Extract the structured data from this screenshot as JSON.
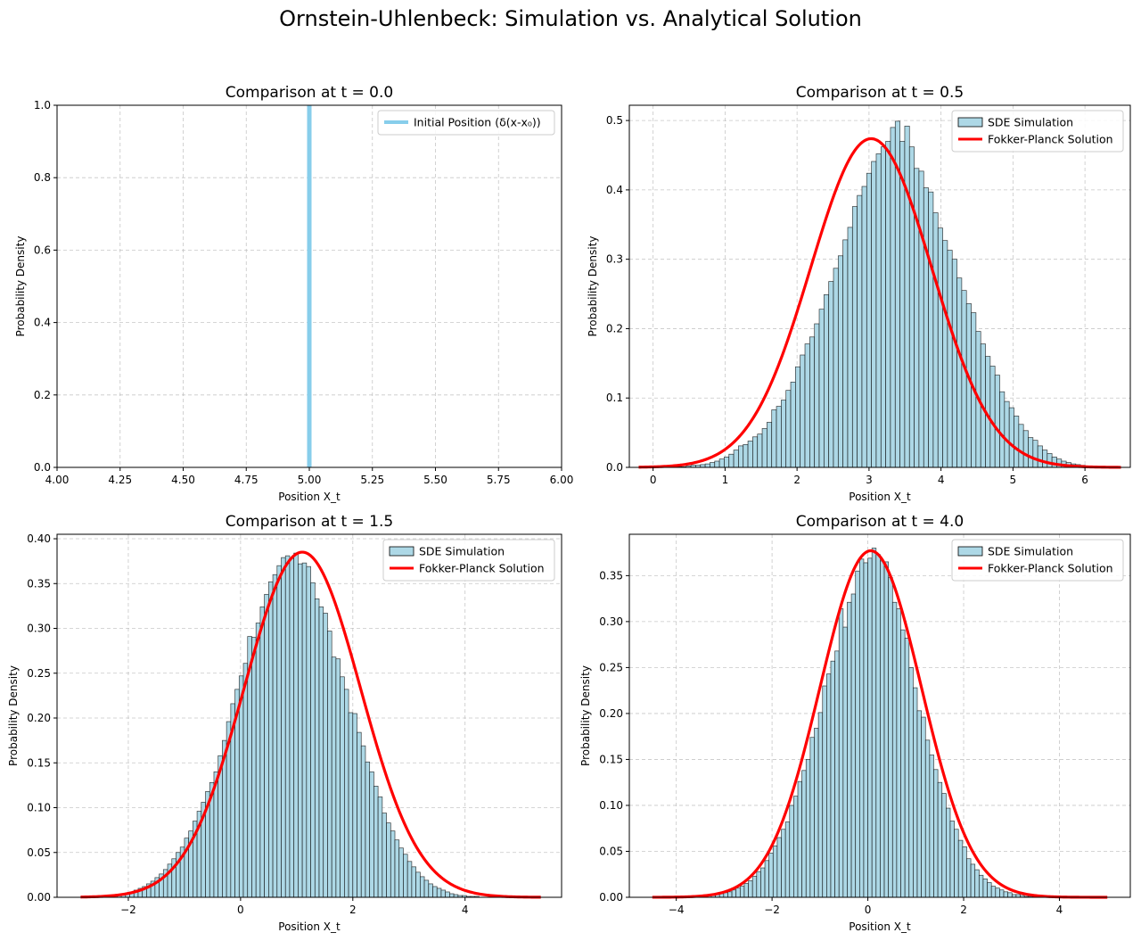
{
  "figure": {
    "title": "Ornstein-Uhlenbeck: Simulation vs. Analytical Solution"
  },
  "colors": {
    "bar_fill": "#add8e6",
    "bar_edge": "#000000",
    "delta_line": "#87ceeb",
    "analytic_line": "#ff0000",
    "grid": "#b0b0b0"
  },
  "chart_data": [
    {
      "type": "bar",
      "title": "Comparison at t = 0.0",
      "xlabel": "Position X_t",
      "ylabel": "Probability Density",
      "xlim": [
        4.0,
        6.0
      ],
      "ylim": [
        0.0,
        1.0
      ],
      "xticks": [
        4.0,
        4.25,
        4.5,
        4.75,
        5.0,
        5.25,
        5.5,
        5.75,
        6.0
      ],
      "xtick_labels": [
        "4.00",
        "4.25",
        "4.50",
        "4.75",
        "5.00",
        "5.25",
        "5.50",
        "5.75",
        "6.00"
      ],
      "yticks": [
        0.0,
        0.2,
        0.4,
        0.6,
        0.8,
        1.0
      ],
      "ytick_labels": [
        "0.0",
        "0.2",
        "0.4",
        "0.6",
        "0.8",
        "1.0"
      ],
      "grid": true,
      "legend_position": "top-right",
      "legend": [
        {
          "label": "Initial Position (δ(x-x₀))",
          "kind": "line",
          "color": "#87ceeb"
        }
      ],
      "delta_x": 5.0
    },
    {
      "type": "bar",
      "title": "Comparison at t = 0.5",
      "xlabel": "Position X_t",
      "ylabel": "Probability Density",
      "xlim": [
        -0.33,
        6.63
      ],
      "ylim": [
        0.0,
        0.522
      ],
      "xticks": [
        0,
        1,
        2,
        3,
        4,
        5,
        6
      ],
      "xtick_labels": [
        "0",
        "1",
        "2",
        "3",
        "4",
        "5",
        "6"
      ],
      "yticks": [
        0.0,
        0.1,
        0.2,
        0.3,
        0.4,
        0.5
      ],
      "ytick_labels": [
        "0.0",
        "0.1",
        "0.2",
        "0.3",
        "0.4",
        "0.5"
      ],
      "grid": true,
      "legend_position": "top-right",
      "legend": [
        {
          "label": "SDE Simulation",
          "kind": "patch",
          "color": "#add8e6"
        },
        {
          "label": "Fokker-Planck Solution",
          "kind": "line",
          "color": "#ff0000"
        }
      ],
      "hist_range": [
        -0.2,
        6.4
      ],
      "hist_bins": 100,
      "hist_density": [
        0.0,
        0.0,
        0.0,
        0.0,
        0.0,
        0.0,
        0.001,
        0.001,
        0.001,
        0.001,
        0.002,
        0.003,
        0.003,
        0.004,
        0.005,
        0.007,
        0.009,
        0.012,
        0.015,
        0.019,
        0.025,
        0.031,
        0.033,
        0.038,
        0.044,
        0.048,
        0.056,
        0.065,
        0.083,
        0.088,
        0.097,
        0.111,
        0.123,
        0.145,
        0.162,
        0.178,
        0.188,
        0.207,
        0.228,
        0.249,
        0.268,
        0.287,
        0.305,
        0.328,
        0.346,
        0.376,
        0.392,
        0.405,
        0.424,
        0.441,
        0.452,
        0.462,
        0.47,
        0.49,
        0.499,
        0.47,
        0.492,
        0.462,
        0.431,
        0.427,
        0.403,
        0.397,
        0.367,
        0.345,
        0.327,
        0.313,
        0.3,
        0.273,
        0.255,
        0.236,
        0.223,
        0.196,
        0.178,
        0.16,
        0.146,
        0.133,
        0.109,
        0.095,
        0.086,
        0.074,
        0.062,
        0.053,
        0.043,
        0.039,
        0.031,
        0.025,
        0.02,
        0.015,
        0.012,
        0.009,
        0.007,
        0.005,
        0.004,
        0.003,
        0.002,
        0.001,
        0.001,
        0.001,
        0.0,
        0.0
      ],
      "curve": {
        "mu": 3.03,
        "sigma": 0.842,
        "x_range": [
          -0.2,
          6.5
        ]
      }
    },
    {
      "type": "bar",
      "title": "Comparison at t = 1.5",
      "xlabel": "Position X_t",
      "ylabel": "Probability Density",
      "xlim": [
        -3.27,
        5.72
      ],
      "ylim": [
        0.0,
        0.405
      ],
      "xticks": [
        -2,
        0,
        2,
        4
      ],
      "xtick_labels": [
        "−2",
        "0",
        "2",
        "4"
      ],
      "yticks": [
        0.0,
        0.05,
        0.1,
        0.15,
        0.2,
        0.25,
        0.3,
        0.35,
        0.4
      ],
      "ytick_labels": [
        "0.00",
        "0.05",
        "0.10",
        "0.15",
        "0.20",
        "0.25",
        "0.30",
        "0.35",
        "0.40"
      ],
      "grid": true,
      "legend_position": "top-right",
      "legend": [
        {
          "label": "SDE Simulation",
          "kind": "patch",
          "color": "#add8e6"
        },
        {
          "label": "Fokker-Planck Solution",
          "kind": "line",
          "color": "#ff0000"
        }
      ],
      "hist_range": [
        -2.5,
        5.0
      ],
      "hist_bins": 100,
      "hist_density": [
        0.001,
        0.001,
        0.002,
        0.002,
        0.003,
        0.004,
        0.005,
        0.006,
        0.008,
        0.01,
        0.012,
        0.015,
        0.018,
        0.022,
        0.026,
        0.031,
        0.037,
        0.043,
        0.05,
        0.056,
        0.066,
        0.074,
        0.085,
        0.096,
        0.106,
        0.118,
        0.128,
        0.14,
        0.158,
        0.175,
        0.196,
        0.216,
        0.232,
        0.247,
        0.261,
        0.291,
        0.29,
        0.306,
        0.324,
        0.338,
        0.352,
        0.36,
        0.37,
        0.379,
        0.381,
        0.378,
        0.384,
        0.372,
        0.373,
        0.369,
        0.351,
        0.333,
        0.324,
        0.317,
        0.297,
        0.268,
        0.266,
        0.246,
        0.232,
        0.206,
        0.205,
        0.184,
        0.169,
        0.151,
        0.14,
        0.124,
        0.112,
        0.094,
        0.083,
        0.074,
        0.064,
        0.055,
        0.048,
        0.04,
        0.034,
        0.028,
        0.023,
        0.019,
        0.015,
        0.012,
        0.01,
        0.008,
        0.006,
        0.004,
        0.003,
        0.002,
        0.002,
        0.001,
        0.001,
        0.001,
        0.0,
        0.0,
        0.0,
        0.0,
        0.0,
        0.0,
        0.0,
        0.0,
        0.0,
        0.0
      ],
      "curve": {
        "mu": 1.1,
        "sigma": 1.036,
        "x_range": [
          -2.85,
          5.35
        ]
      }
    },
    {
      "type": "bar",
      "title": "Comparison at t = 4.0",
      "xlabel": "Position X_t",
      "ylabel": "Probability Density",
      "xlim": [
        -4.98,
        5.48
      ],
      "ylim": [
        0.0,
        0.395
      ],
      "xticks": [
        -4,
        -2,
        0,
        2,
        4
      ],
      "xtick_labels": [
        "−4",
        "−2",
        "0",
        "2",
        "4"
      ],
      "yticks": [
        0.0,
        0.05,
        0.1,
        0.15,
        0.2,
        0.25,
        0.3,
        0.35
      ],
      "ytick_labels": [
        "0.00",
        "0.05",
        "0.10",
        "0.15",
        "0.20",
        "0.25",
        "0.30",
        "0.35"
      ],
      "grid": true,
      "legend_position": "top-right",
      "legend": [
        {
          "label": "SDE Simulation",
          "kind": "patch",
          "color": "#add8e6"
        },
        {
          "label": "Fokker-Planck Solution",
          "kind": "line",
          "color": "#ff0000"
        }
      ],
      "hist_range": [
        -4.3,
        4.3
      ],
      "hist_bins": 100,
      "hist_density": [
        0.0,
        0.0,
        0.0,
        0.0,
        0.0,
        0.0,
        0.0,
        0.0,
        0.001,
        0.001,
        0.001,
        0.002,
        0.002,
        0.003,
        0.004,
        0.005,
        0.006,
        0.008,
        0.01,
        0.012,
        0.015,
        0.018,
        0.023,
        0.028,
        0.032,
        0.04,
        0.048,
        0.056,
        0.065,
        0.074,
        0.082,
        0.1,
        0.11,
        0.126,
        0.138,
        0.15,
        0.174,
        0.184,
        0.201,
        0.23,
        0.243,
        0.257,
        0.268,
        0.314,
        0.294,
        0.321,
        0.33,
        0.355,
        0.368,
        0.364,
        0.369,
        0.38,
        0.373,
        0.366,
        0.365,
        0.348,
        0.321,
        0.314,
        0.291,
        0.282,
        0.25,
        0.228,
        0.203,
        0.196,
        0.171,
        0.155,
        0.139,
        0.125,
        0.113,
        0.097,
        0.083,
        0.074,
        0.062,
        0.055,
        0.042,
        0.036,
        0.03,
        0.024,
        0.02,
        0.016,
        0.012,
        0.01,
        0.008,
        0.006,
        0.005,
        0.003,
        0.003,
        0.002,
        0.001,
        0.001,
        0.001,
        0.001,
        0.0,
        0.0,
        0.0,
        0.0,
        0.0,
        0.0,
        0.0,
        0.0
      ],
      "curve": {
        "mu": 0.06,
        "sigma": 1.058,
        "x_range": [
          -4.5,
          5.0
        ]
      }
    }
  ]
}
